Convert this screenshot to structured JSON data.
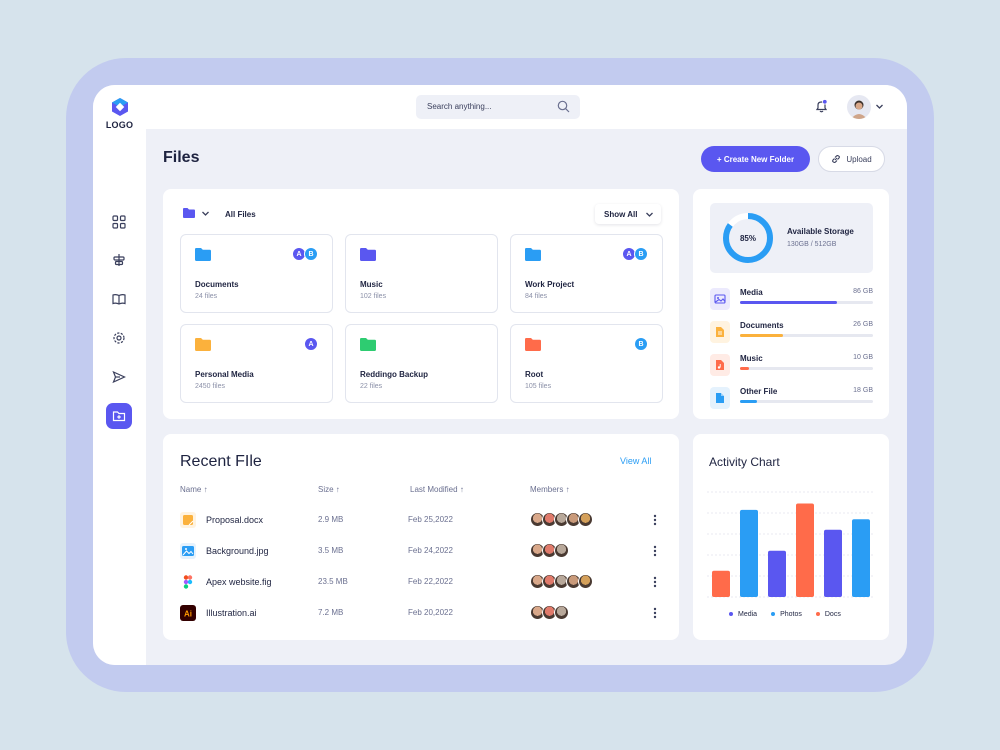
{
  "app": {
    "logo_text": "LOGO"
  },
  "search": {
    "placeholder": "Search anything..."
  },
  "header": {
    "title": "Files",
    "create_label": "+ Create New Folder",
    "upload_label": "Upload"
  },
  "files": {
    "filter_label": "All Files",
    "show_label": "Show All",
    "folders": [
      {
        "name": "Documents",
        "count": "24 files",
        "color": "#2a9df4",
        "badges": [
          "A",
          "B"
        ]
      },
      {
        "name": "Music",
        "count": "102 files",
        "color": "#5a57f0",
        "badges": []
      },
      {
        "name": "Work Project",
        "count": "84 files",
        "color": "#2a9df4",
        "badges": [
          "A",
          "B"
        ]
      },
      {
        "name": "Personal Media",
        "count": "2450 files",
        "color": "#fbb13c",
        "badges": [
          "A"
        ]
      },
      {
        "name": "Reddingo Backup",
        "count": "22 files",
        "color": "#2ecc71",
        "badges": []
      },
      {
        "name": "Root",
        "count": "105 files",
        "color": "#ff6b4a",
        "badges": [
          "B"
        ]
      }
    ]
  },
  "storage": {
    "percent_label": "85%",
    "percent": 0.85,
    "title": "Available Storage",
    "used": "130GB / 512GB",
    "items": [
      {
        "name": "Media",
        "size": "86 GB",
        "fraction": 0.73,
        "color": "#5a57f0",
        "bg": "#eceafd",
        "icon": "image-icon"
      },
      {
        "name": "Documents",
        "size": "26 GB",
        "fraction": 0.32,
        "color": "#fbb13c",
        "bg": "#fff3e0",
        "icon": "document-icon"
      },
      {
        "name": "Music",
        "size": "10 GB",
        "fraction": 0.07,
        "color": "#ff6b4a",
        "bg": "#ffebe5",
        "icon": "music-file-icon"
      },
      {
        "name": "Other File",
        "size": "18 GB",
        "fraction": 0.13,
        "color": "#2a9df4",
        "bg": "#e5f2fd",
        "icon": "file-icon"
      }
    ]
  },
  "recent": {
    "title": "Recent FIle",
    "view_all": "View All",
    "columns": {
      "name": "Name",
      "size": "Size",
      "modified": "Last Modified",
      "members": "Members"
    },
    "rows": [
      {
        "name": "Proposal.docx",
        "size": "2.9 MB",
        "modified": "Feb 25,2022",
        "icon": "docx-icon",
        "members": 5
      },
      {
        "name": "Background.jpg",
        "size": "3.5 MB",
        "modified": "Feb 24,2022",
        "icon": "image-file-icon",
        "members": 3
      },
      {
        "name": "Apex website.fig",
        "size": "23.5 MB",
        "modified": "Feb 22,2022",
        "icon": "figma-icon",
        "members": 5
      },
      {
        "name": "Illustration.ai",
        "size": "7.2 MB",
        "modified": "Feb 20,2022",
        "icon": "illustrator-icon",
        "members": 3
      }
    ]
  },
  "activity": {
    "title": "Activity Chart",
    "chart_data": {
      "type": "bar",
      "values": [
        2.5,
        8.3,
        4.4,
        8.9,
        6.4,
        7.4
      ],
      "colors": [
        "#ff6b4a",
        "#2a9df4",
        "#5a57f0",
        "#ff6b4a",
        "#5a57f0",
        "#2a9df4"
      ],
      "legend": [
        {
          "label": "Media",
          "color": "#5a57f0"
        },
        {
          "label": "Photos",
          "color": "#2a9df4"
        },
        {
          "label": "Docs",
          "color": "#ff6b4a"
        }
      ]
    }
  }
}
